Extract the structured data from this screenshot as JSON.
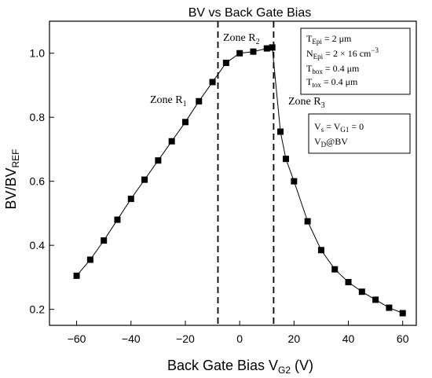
{
  "chart_data": {
    "type": "line",
    "title": "BV vs Back Gate Bias",
    "xlabel": "Back Gate Bias V",
    "xlabel_sub": "G2",
    "xlabel_unit": " (V)",
    "ylabel": "BV/BV",
    "ylabel_sub": "REF",
    "xlim": [
      -70,
      65
    ],
    "ylim": [
      0.15,
      1.1
    ],
    "xticks": [
      -60,
      -40,
      -20,
      0,
      20,
      40,
      60
    ],
    "yticks": [
      0.2,
      0.4,
      0.6,
      0.8,
      1.0
    ],
    "xtick_labels": [
      "−60",
      "−40",
      "−20",
      "0",
      "20",
      "40",
      "60"
    ],
    "ytick_labels": [
      "0.2",
      "0.4",
      "0.6",
      "0.8",
      "1.0"
    ],
    "grid": false,
    "marker": "square",
    "color": "#000000",
    "series": [
      {
        "x": [
          -60,
          -55,
          -50,
          -45,
          -40,
          -35,
          -30,
          -25,
          -20,
          -15,
          -10,
          -5,
          0,
          5,
          10,
          12,
          15,
          17,
          20,
          25,
          30,
          35,
          40,
          45,
          50,
          55,
          60
        ],
        "y": [
          0.305,
          0.355,
          0.415,
          0.48,
          0.545,
          0.605,
          0.665,
          0.725,
          0.785,
          0.85,
          0.91,
          0.97,
          1.0,
          1.005,
          1.015,
          1.018,
          0.755,
          0.67,
          0.6,
          0.475,
          0.385,
          0.325,
          0.285,
          0.255,
          0.23,
          0.205,
          0.188
        ]
      }
    ],
    "vlines": [
      -8,
      12.5
    ],
    "zones": [
      {
        "label": "Zone R",
        "sub": "1"
      },
      {
        "label": "Zone R",
        "sub": "2"
      },
      {
        "label": "Zone R",
        "sub": "3"
      }
    ],
    "legend_params": [
      {
        "main": "T",
        "sub": "Epi",
        "rest": " =  2 μm",
        "sup": ""
      },
      {
        "main": "N",
        "sub": "Epi",
        "rest": " =  2 × 16 cm",
        "sup": "−3"
      },
      {
        "main": "T",
        "sub": "box",
        "rest": " =  0.4 μm",
        "sup": ""
      },
      {
        "main": "T",
        "sub": "tox",
        "rest": " =  0.4 μm",
        "sup": ""
      }
    ],
    "legend_bias": [
      {
        "main": "V",
        "sub": "s",
        "rest": " = V",
        "sub2": "G1",
        "rest2": " = 0"
      },
      {
        "main": "V",
        "sub": "D",
        "rest": "@BV",
        "sub2": "",
        "rest2": ""
      }
    ]
  }
}
